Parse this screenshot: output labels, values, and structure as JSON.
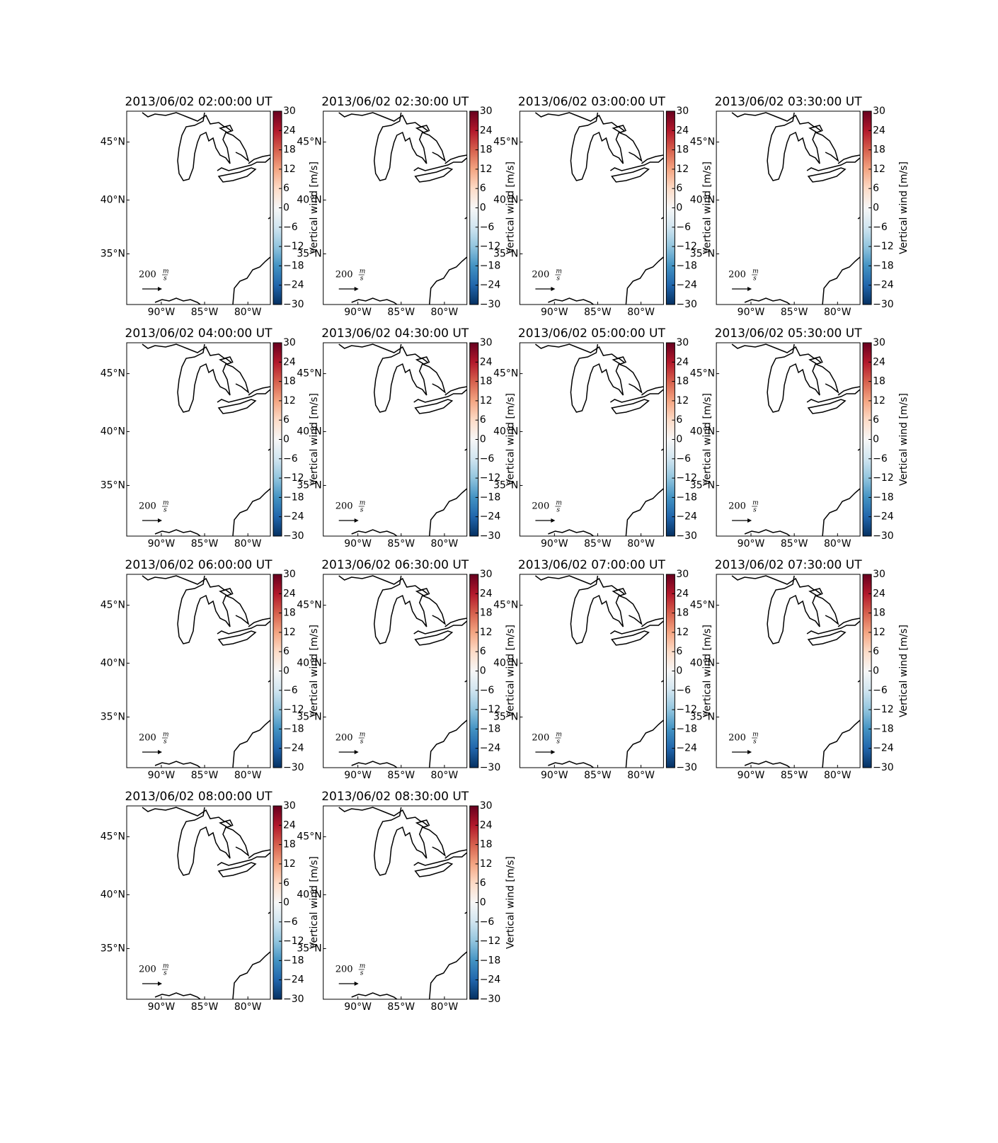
{
  "panels": [
    {
      "title": "2013/06/02 02:00:00 UT"
    },
    {
      "title": "2013/06/02 02:30:00 UT"
    },
    {
      "title": "2013/06/02 03:00:00 UT"
    },
    {
      "title": "2013/06/02 03:30:00 UT"
    },
    {
      "title": "2013/06/02 04:00:00 UT"
    },
    {
      "title": "2013/06/02 04:30:00 UT"
    },
    {
      "title": "2013/06/02 05:00:00 UT"
    },
    {
      "title": "2013/06/02 05:30:00 UT"
    },
    {
      "title": "2013/06/02 06:00:00 UT"
    },
    {
      "title": "2013/06/02 06:30:00 UT"
    },
    {
      "title": "2013/06/02 07:00:00 UT"
    },
    {
      "title": "2013/06/02 07:30:00 UT"
    },
    {
      "title": "2013/06/02 08:00:00 UT"
    },
    {
      "title": "2013/06/02 08:30:00 UT"
    }
  ],
  "lat_range": [
    30,
    47.5
  ],
  "lon_range": [
    -94,
    -77.4
  ],
  "lat_ticks": [
    {
      "value": 35,
      "label": "35°N"
    },
    {
      "value": 40,
      "label": "40°N"
    },
    {
      "value": 45,
      "label": "45°N"
    }
  ],
  "lon_ticks": [
    {
      "value": -90,
      "label": "90°W"
    },
    {
      "value": -85,
      "label": "85°W"
    },
    {
      "value": -80,
      "label": "80°W"
    }
  ],
  "colorbar": {
    "label": "Vertical wind [m/s]",
    "range": [
      -30,
      30
    ],
    "colormap": "RdBu_r",
    "ticks": [
      {
        "value": -30,
        "label": "−30"
      },
      {
        "value": -24,
        "label": "−24"
      },
      {
        "value": -18,
        "label": "−18"
      },
      {
        "value": -12,
        "label": "−12"
      },
      {
        "value": -6,
        "label": "−6"
      },
      0,
      6,
      12,
      18,
      24,
      30
    ]
  },
  "quiver_key": {
    "value": 200,
    "numerator": "m",
    "denominator": "s"
  }
}
